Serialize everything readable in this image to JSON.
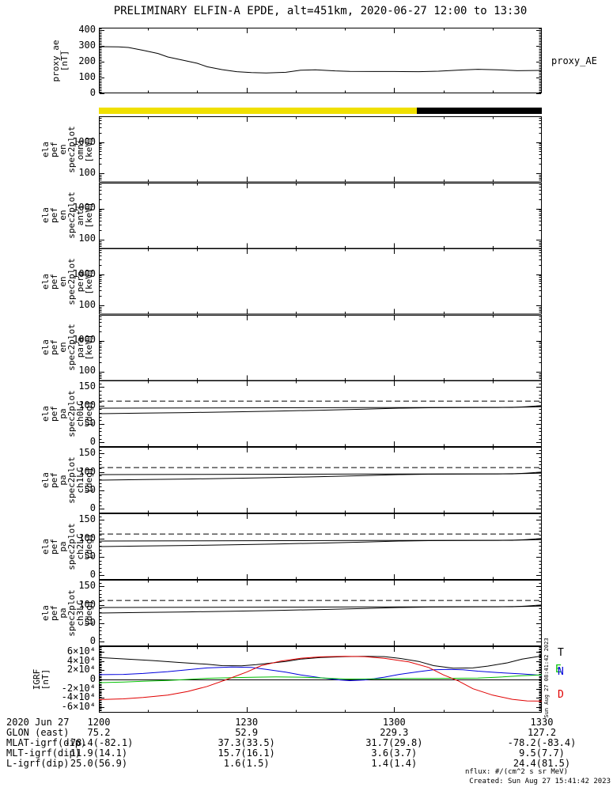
{
  "title": "PRELIMINARY ELFIN-A EPDE, alt=451km, 2020-06-27 12:00 to 13:30",
  "right_labels": {
    "proxy": "proxy_AE"
  },
  "colors": {
    "line": "#000000",
    "igrf_t": "#000000",
    "igrf_n": "#0000dd",
    "igrf_e": "#00c000",
    "igrf_d": "#e00000",
    "flag_sunlit": "#f0e000",
    "flag_shadow": "#000000"
  },
  "strip": {
    "segments": [
      {
        "name": "sunlit",
        "color": "#f0e000",
        "frac": 0.718
      },
      {
        "name": "shadow",
        "color": "#000000",
        "frac": 0.282
      }
    ]
  },
  "time_axis": {
    "start_minutes": 0,
    "end_minutes": 90,
    "tick_labels": [
      "1200",
      "1230",
      "1300",
      "1330"
    ],
    "minor_step_minutes": 10
  },
  "chart_data": [
    {
      "id": "proxy_ae",
      "type": "line",
      "ylabel_lines": [
        "proxy_ae",
        "[nT]"
      ],
      "yscale": "lin",
      "ylim": [
        0,
        415
      ],
      "yticks": [
        {
          "v": 0,
          "label": "0"
        },
        {
          "v": 100,
          "label": "100"
        },
        {
          "v": 200,
          "label": "200"
        },
        {
          "v": 300,
          "label": "300"
        },
        {
          "v": 400,
          "label": "400"
        }
      ],
      "series": [
        {
          "name": "proxy_AE",
          "color": "#000000",
          "x": [
            0,
            4,
            6,
            9,
            12,
            14,
            17,
            20,
            22,
            25,
            28,
            31,
            34,
            38,
            41,
            44,
            48,
            51,
            56,
            60,
            65,
            69,
            74,
            77,
            81,
            85,
            90
          ],
          "y": [
            295,
            294,
            290,
            272,
            252,
            230,
            210,
            190,
            168,
            150,
            137,
            131,
            129,
            133,
            146,
            149,
            142,
            139,
            138,
            138,
            137,
            140,
            148,
            152,
            149,
            143,
            145
          ]
        }
      ]
    },
    {
      "id": "en_spec_omni",
      "type": "spectrogram",
      "ylabel_lines": [
        "ela",
        "pef",
        "en",
        "spec2plot",
        "omni",
        "[keV]"
      ],
      "yscale": "log",
      "ylim": [
        50,
        6800
      ],
      "yticks": [
        {
          "v": 100,
          "label": "100"
        },
        {
          "v": 1000,
          "label": "1000"
        }
      ],
      "series": []
    },
    {
      "id": "en_spec_anti",
      "type": "spectrogram",
      "ylabel_lines": [
        "ela",
        "pef",
        "en",
        "spec2plot",
        "anti",
        "[keV]"
      ],
      "yscale": "log",
      "ylim": [
        50,
        6800
      ],
      "yticks": [
        {
          "v": 100,
          "label": "100"
        },
        {
          "v": 1000,
          "label": "1000"
        }
      ],
      "series": []
    },
    {
      "id": "en_spec_perp",
      "type": "spectrogram",
      "ylabel_lines": [
        "ela",
        "pef",
        "en",
        "spec2plot",
        "perp",
        "[keV]"
      ],
      "yscale": "log",
      "ylim": [
        50,
        6800
      ],
      "yticks": [
        {
          "v": 100,
          "label": "100"
        },
        {
          "v": 1000,
          "label": "1000"
        }
      ],
      "series": []
    },
    {
      "id": "en_spec_para",
      "type": "spectrogram",
      "ylabel_lines": [
        "ela",
        "pef",
        "en",
        "spec2plot",
        "para",
        "[keV]"
      ],
      "yscale": "log",
      "ylim": [
        50,
        6800
      ],
      "yticks": [
        {
          "v": 100,
          "label": "100"
        },
        {
          "v": 1000,
          "label": "1000"
        }
      ],
      "series": []
    },
    {
      "id": "pa_spec_ch0lc",
      "type": "line",
      "ylabel_lines": [
        "ela",
        "pef",
        "pa",
        "spec2plot",
        "ch0LC",
        "[deg]"
      ],
      "yscale": "lin",
      "ylim": [
        -12,
        168
      ],
      "yticks": [
        {
          "v": 0,
          "label": "0"
        },
        {
          "v": 50,
          "label": "50"
        },
        {
          "v": 100,
          "label": "100"
        },
        {
          "v": 150,
          "label": "150"
        }
      ],
      "series": [
        {
          "name": "antiloss-cone",
          "color": "#000000",
          "style": "dashed",
          "x": [
            0,
            90
          ],
          "y": [
            112,
            112
          ]
        },
        {
          "name": "pa-upper",
          "color": "#000000",
          "x": [
            0,
            18,
            36,
            54,
            72,
            81,
            87,
            90
          ],
          "y": [
            93,
            93.5,
            94,
            94.5,
            95,
            95,
            96,
            97
          ]
        },
        {
          "name": "loss-cone",
          "color": "#000000",
          "x": [
            0,
            9,
            18,
            27,
            36,
            45,
            54,
            61,
            67,
            76,
            84,
            87,
            90
          ],
          "y": [
            78,
            79.5,
            81,
            83,
            85,
            87.5,
            90.5,
            93,
            94,
            94.8,
            95,
            97,
            100
          ]
        }
      ]
    },
    {
      "id": "pa_spec_ch1lc",
      "type": "line",
      "ylabel_lines": [
        "ela",
        "pef",
        "pa",
        "spec2plot",
        "ch1LC",
        "[deg]"
      ],
      "yscale": "lin",
      "ylim": [
        -12,
        168
      ],
      "yticks": [
        {
          "v": 0,
          "label": "0"
        },
        {
          "v": 50,
          "label": "50"
        },
        {
          "v": 100,
          "label": "100"
        },
        {
          "v": 150,
          "label": "150"
        }
      ],
      "series": [
        {
          "name": "antiloss-cone",
          "color": "#000000",
          "style": "dashed",
          "x": [
            0,
            90
          ],
          "y": [
            112,
            112
          ]
        },
        {
          "name": "pa-upper",
          "color": "#000000",
          "x": [
            0,
            18,
            36,
            54,
            72,
            81,
            87,
            90
          ],
          "y": [
            93,
            93.5,
            94,
            94.5,
            95,
            95,
            96,
            97
          ]
        },
        {
          "name": "loss-cone",
          "color": "#000000",
          "x": [
            0,
            9,
            18,
            27,
            36,
            45,
            54,
            61,
            67,
            76,
            84,
            87,
            90
          ],
          "y": [
            78,
            79.5,
            81,
            83,
            85,
            87.5,
            90.5,
            93,
            94,
            94.8,
            95,
            97,
            100
          ]
        }
      ]
    },
    {
      "id": "pa_spec_ch2lc",
      "type": "line",
      "ylabel_lines": [
        "ela",
        "pef",
        "pa",
        "spec2plot",
        "ch2LC",
        "[deg]"
      ],
      "yscale": "lin",
      "ylim": [
        -12,
        168
      ],
      "yticks": [
        {
          "v": 0,
          "label": "0"
        },
        {
          "v": 50,
          "label": "50"
        },
        {
          "v": 100,
          "label": "100"
        },
        {
          "v": 150,
          "label": "150"
        }
      ],
      "series": [
        {
          "name": "antiloss-cone",
          "color": "#000000",
          "style": "dashed",
          "x": [
            0,
            90
          ],
          "y": [
            112,
            112
          ]
        },
        {
          "name": "pa-upper",
          "color": "#000000",
          "x": [
            0,
            18,
            36,
            54,
            72,
            81,
            87,
            90
          ],
          "y": [
            93,
            93.5,
            94,
            94.5,
            95,
            95,
            96,
            97
          ]
        },
        {
          "name": "loss-cone",
          "color": "#000000",
          "x": [
            0,
            9,
            18,
            27,
            36,
            45,
            54,
            61,
            67,
            76,
            84,
            87,
            90
          ],
          "y": [
            78,
            79.5,
            81,
            83,
            85,
            87.5,
            90.5,
            93,
            94,
            94.8,
            95,
            97,
            100
          ]
        }
      ]
    },
    {
      "id": "pa_spec_ch3lc",
      "type": "line",
      "ylabel_lines": [
        "ela",
        "pef",
        "pa",
        "spec2plot",
        "ch3LC",
        "[deg]"
      ],
      "yscale": "lin",
      "ylim": [
        -12,
        168
      ],
      "yticks": [
        {
          "v": 0,
          "label": "0"
        },
        {
          "v": 50,
          "label": "50"
        },
        {
          "v": 100,
          "label": "100"
        },
        {
          "v": 150,
          "label": "150"
        }
      ],
      "series": [
        {
          "name": "antiloss-cone",
          "color": "#000000",
          "style": "dashed",
          "x": [
            0,
            90
          ],
          "y": [
            112,
            112
          ]
        },
        {
          "name": "pa-upper",
          "color": "#000000",
          "x": [
            0,
            18,
            36,
            54,
            72,
            81,
            87,
            90
          ],
          "y": [
            93,
            93.5,
            94,
            94.5,
            95,
            95,
            96,
            97
          ]
        },
        {
          "name": "loss-cone",
          "color": "#000000",
          "x": [
            0,
            9,
            18,
            27,
            36,
            45,
            54,
            61,
            67,
            76,
            84,
            87,
            90
          ],
          "y": [
            78,
            79.5,
            81,
            83,
            85,
            87.5,
            90.5,
            93,
            94,
            94.8,
            95,
            97,
            100
          ]
        }
      ]
    },
    {
      "id": "igrf",
      "type": "line",
      "ylabel_lines": [
        "IGRF",
        "[nT]"
      ],
      "yscale": "lin",
      "ylim": [
        -72000,
        72000
      ],
      "zero_line": true,
      "yticks": [
        {
          "v": 60000,
          "label": "6×10⁴"
        },
        {
          "v": 40000,
          "label": "4×10⁴"
        },
        {
          "v": 20000,
          "label": "2×10⁴"
        },
        {
          "v": 0,
          "label": "0"
        },
        {
          "v": -20000,
          "label": "-2×10⁴"
        },
        {
          "v": -40000,
          "label": "-4×10⁴"
        },
        {
          "v": -60000,
          "label": "-6×10⁴"
        }
      ],
      "series": [
        {
          "name": "T",
          "color": "#000000",
          "x": [
            0,
            5,
            11,
            16,
            22,
            25,
            29,
            32,
            38,
            41,
            45,
            50,
            54,
            58,
            61,
            65,
            68,
            72,
            76,
            79,
            83,
            86,
            90
          ],
          "y": [
            47500,
            44500,
            41000,
            37000,
            33000,
            30000,
            29500,
            32000,
            39000,
            44000,
            47500,
            49500,
            50000,
            49500,
            46000,
            39000,
            30000,
            24500,
            25000,
            29000,
            36000,
            44000,
            51000
          ]
        },
        {
          "name": "N",
          "color": "#0000dd",
          "x": [
            0,
            5,
            9,
            14,
            18,
            22,
            27,
            31,
            34,
            38,
            41,
            45,
            49,
            51,
            54,
            58,
            61,
            65,
            68,
            71,
            74,
            77,
            81,
            86,
            90
          ],
          "y": [
            10500,
            11000,
            13000,
            17000,
            21000,
            25000,
            27000,
            26000,
            22000,
            16000,
            10000,
            4000,
            -1000,
            -2500,
            -1000,
            5000,
            11000,
            17000,
            21000,
            22000,
            21000,
            18000,
            15000,
            12000,
            9000
          ]
        },
        {
          "name": "E",
          "color": "#00c000",
          "x": [
            0,
            5,
            9,
            14,
            18,
            22,
            27,
            32,
            36,
            41,
            45,
            50,
            54,
            58,
            63,
            68,
            72,
            77,
            81,
            86,
            90
          ],
          "y": [
            -7000,
            -5500,
            -4000,
            -2000,
            0,
            2500,
            4000,
            5000,
            5500,
            5000,
            3500,
            1000,
            1000,
            1500,
            2000,
            2000,
            2500,
            3000,
            5000,
            8000,
            10000
          ]
        },
        {
          "name": "D",
          "color": "#e00000",
          "x": [
            0,
            5,
            9,
            14,
            18,
            22,
            26,
            30,
            33,
            37,
            41,
            45,
            50,
            54,
            58,
            63,
            67,
            70,
            73,
            76,
            80,
            84,
            87,
            90
          ],
          "y": [
            -43500,
            -42000,
            -39000,
            -34000,
            -26000,
            -15000,
            0,
            16000,
            30000,
            40000,
            46000,
            49000,
            50000,
            49500,
            46000,
            38000,
            26000,
            10000,
            -3000,
            -20000,
            -34000,
            -43000,
            -46500,
            -47000
          ]
        }
      ]
    }
  ],
  "footer": {
    "rows": [
      {
        "label": "2020 Jun 27",
        "values": [
          "1200",
          "1230",
          "1300",
          "1330"
        ]
      },
      {
        "label": "GLON (east)",
        "values": [
          "75.2",
          "52.9",
          "229.3",
          "127.2"
        ]
      },
      {
        "label": "MLAT-igrf(dip)",
        "values": [
          "-78.4(-82.1)",
          "37.3(33.5)",
          "31.7(29.8)",
          "-78.2(-83.4)"
        ]
      },
      {
        "label": "MLT-igrf(dip)",
        "values": [
          "11.9(14.1)",
          "15.7(16.1)",
          "3.6(3.7)",
          "9.5(7.7)"
        ]
      },
      {
        "label": "L-igrf(dip)",
        "values": [
          "25.0(56.9)",
          "1.6(1.5)",
          "1.4(1.4)",
          "24.4(81.5)"
        ]
      }
    ]
  },
  "notes": {
    "nflux": "nflux: #/(cm^2 s sr MeV)",
    "created": "Created: Sun Aug 27 15:41:42 2023",
    "side_timestamp": "Sun Aug 27 08:41:42 2023"
  }
}
